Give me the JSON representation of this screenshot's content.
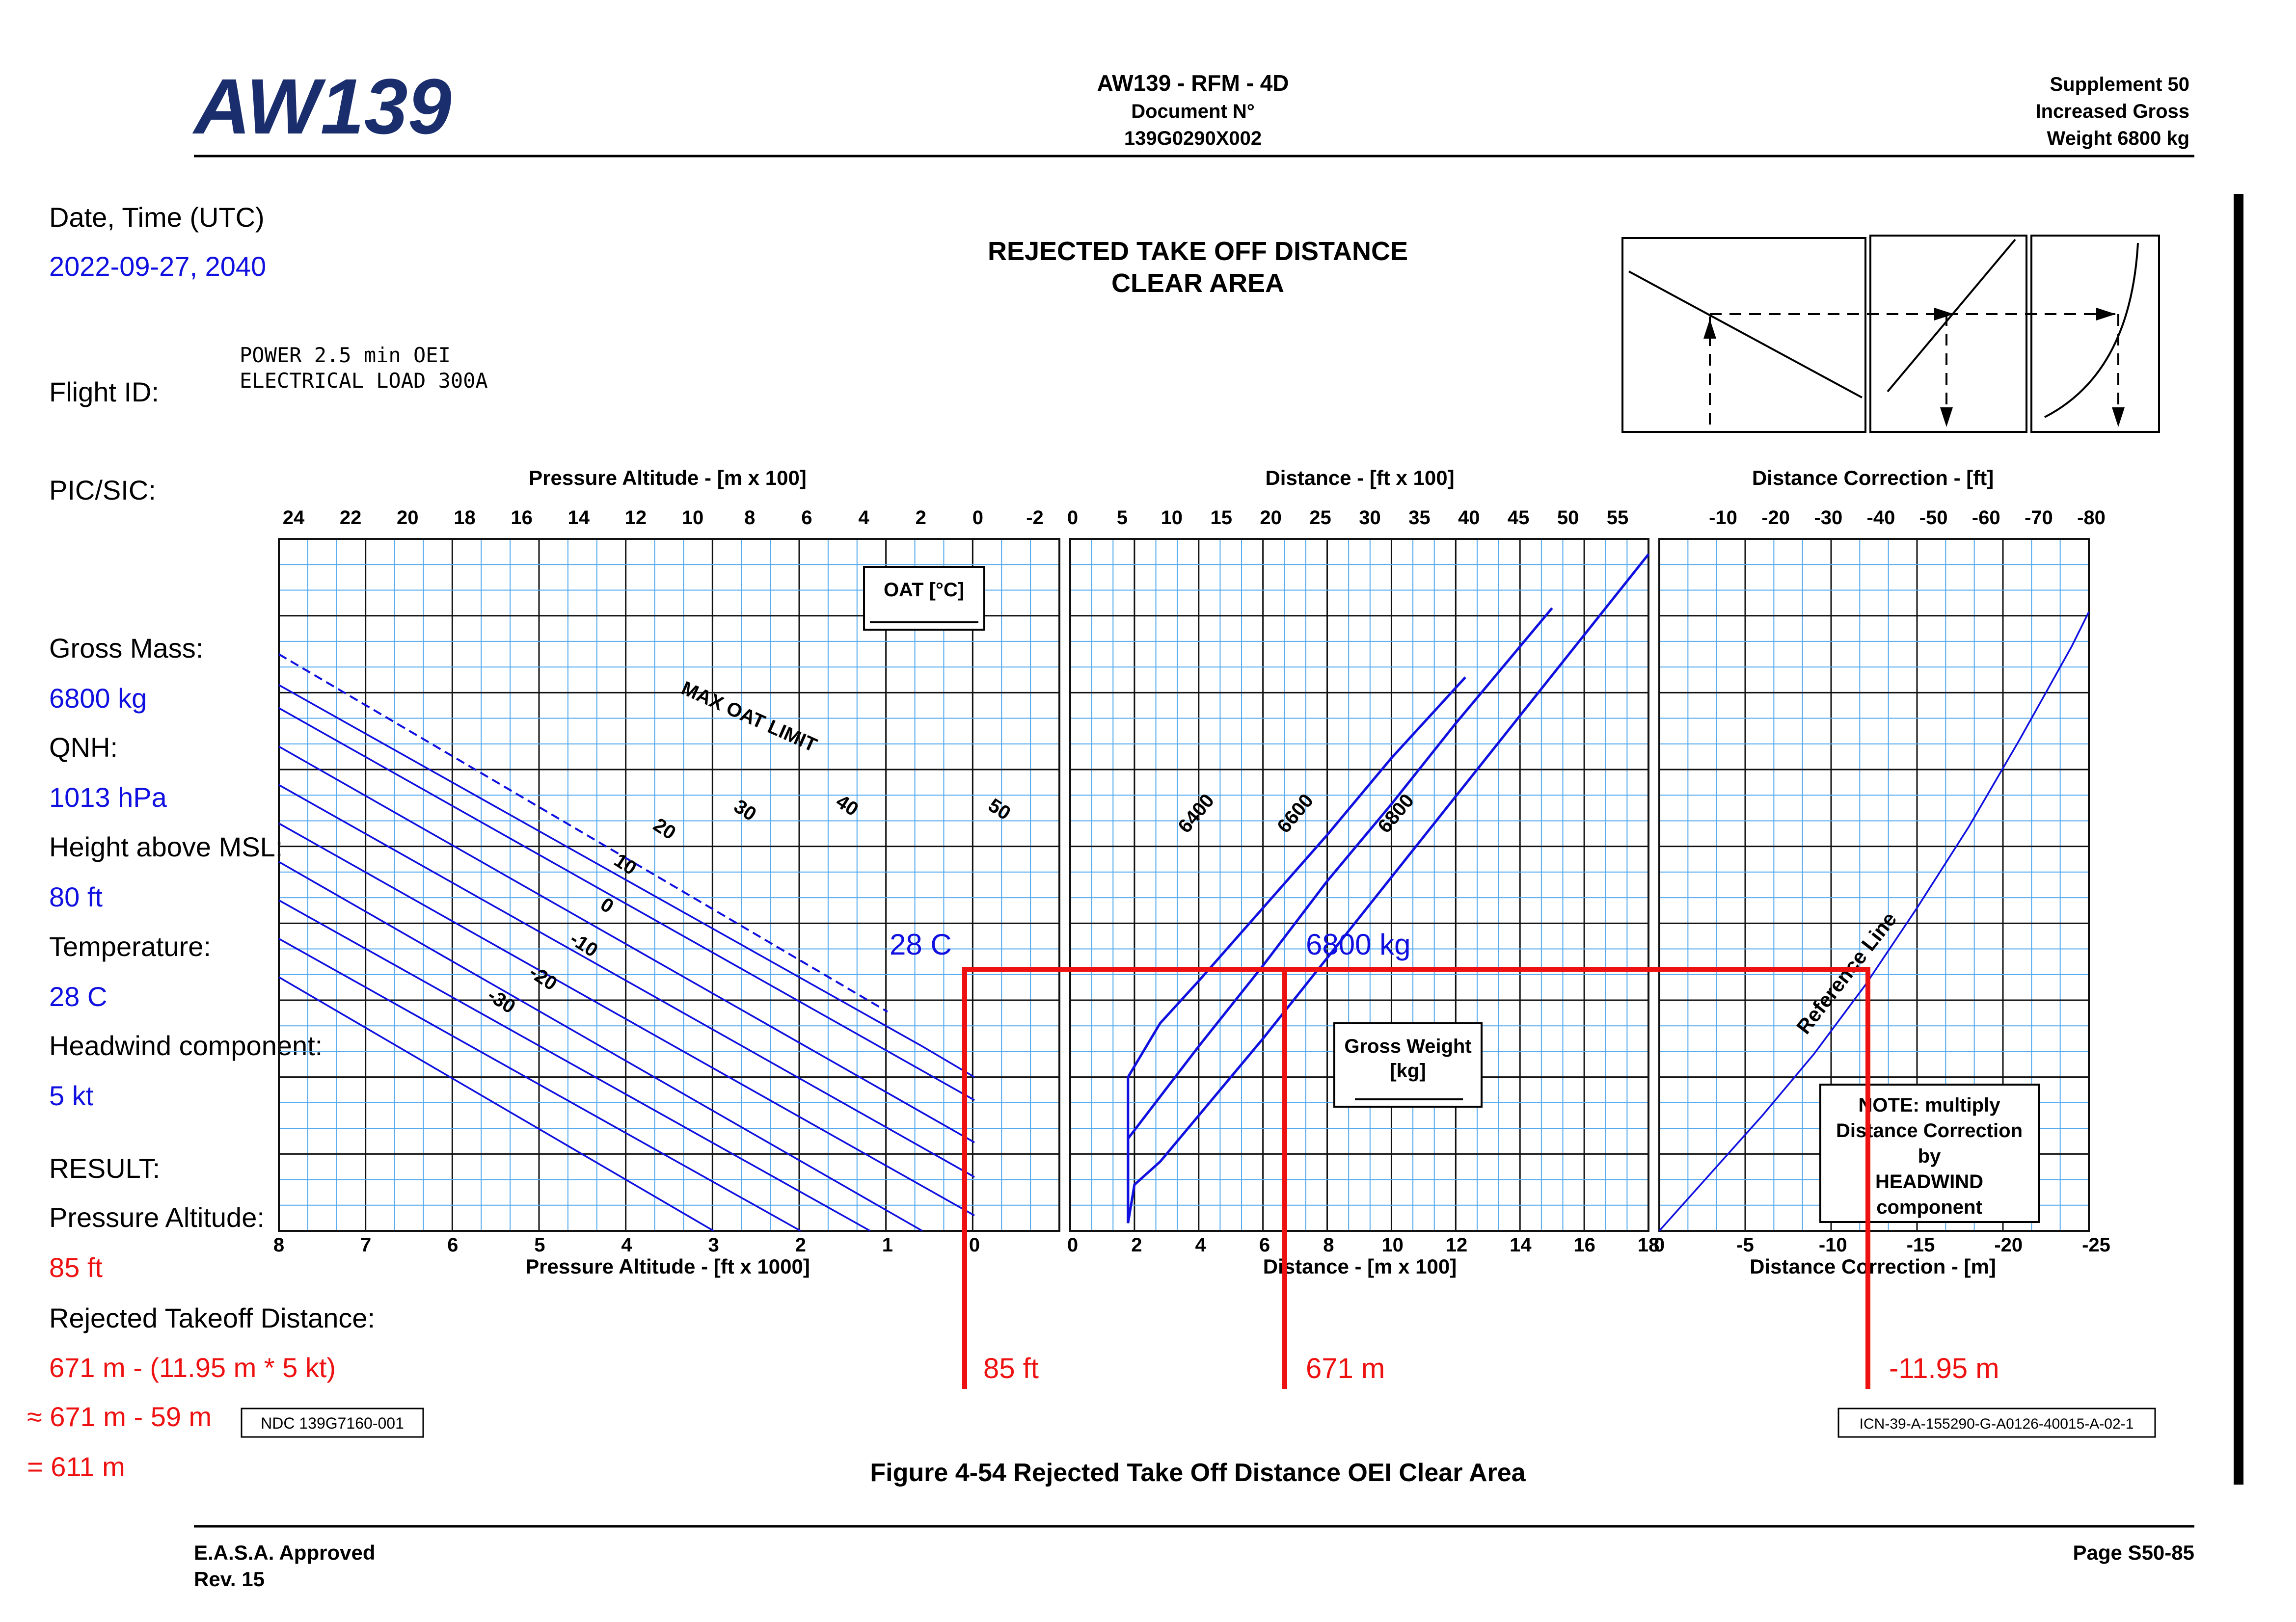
{
  "header": {
    "logo_text": "AW139",
    "center_line1": "AW139 - RFM - 4D",
    "center_line2": "Document N°",
    "center_line3": "139G0290X002",
    "right_line1": "Supplement 50",
    "right_line2": "Increased Gross",
    "right_line3": "Weight 6800 kg"
  },
  "footer": {
    "left_line1": "E.A.S.A. Approved",
    "left_line2": "Rev. 15",
    "right": "Page S50-85"
  },
  "colors": {
    "blue": "#1010e0",
    "red": "#ee1111",
    "grid_light": "#55aaee",
    "logo_red": "#c0392b",
    "logo_blue": "#1a2e6e"
  },
  "sidebar": {
    "date_label": "Date, Time (UTC)",
    "date_value": "2022-09-27, 2040",
    "flight_label": "Flight ID:",
    "pic_label": "PIC/SIC:",
    "gross_mass_label": "Gross Mass:",
    "gross_mass_value": "6800 kg",
    "qnh_label": "QNH:",
    "qnh_value": "1013 hPa",
    "height_label": "Height above MSL:",
    "height_value": "80 ft",
    "temperature_label": "Temperature:",
    "temperature_value": "28 C",
    "headwind_label": "Headwind component:",
    "headwind_value": "5 kt",
    "result_label": "RESULT:",
    "pa_label": "Pressure Altitude:",
    "pa_value": "85 ft",
    "rtod_label": "Rejected Takeoff Distance:",
    "calc_line1": "671 m - (11.95 m * 5 kt)",
    "calc_line2": "≈ 671 m - 59 m",
    "calc_line3": "= 611 m"
  },
  "chart": {
    "title_line1": "REJECTED TAKE OFF DISTANCE",
    "title_line2": "CLEAR AREA",
    "conditions_line1": "POWER 2.5 min OEI",
    "conditions_line2": "ELECTRICAL LOAD 300A",
    "oat_box_label": "OAT [°C]",
    "gw_box_line1": "Gross Weight",
    "gw_box_line2": "[kg]",
    "note_line1": "NOTE: multiply",
    "note_line2": "Distance Correction",
    "note_line3": "by",
    "note_line4": "HEADWIND",
    "note_line5": "component",
    "max_oat_label": "MAX OAT LIMIT",
    "reference_line_label": "Reference Line",
    "ndc_label": "NDC 139G7160-001",
    "icn_label": "ICN-39-A-155290-G-A0126-40015-A-02-1",
    "figure_caption": "Figure 4-54  Rejected Take Off Distance OEI Clear Area",
    "p1_top_title": "Pressure Altitude - [m x 100]",
    "p1_top_ticks": [
      "24",
      "22",
      "20",
      "18",
      "16",
      "14",
      "12",
      "10",
      "8",
      "6",
      "4",
      "2",
      "0",
      "-2"
    ],
    "p1_bottom_title": "Pressure Altitude - [ft x 1000]",
    "p1_bottom_ticks": [
      "8",
      "7",
      "6",
      "5",
      "4",
      "3",
      "2",
      "1",
      "0"
    ],
    "p2_top_title": "Distance - [ft x 100]",
    "p2_top_ticks": [
      "0",
      "5",
      "10",
      "15",
      "20",
      "25",
      "30",
      "35",
      "40",
      "45",
      "50",
      "55"
    ],
    "p2_bottom_title": "Distance - [m x 100]",
    "p2_bottom_ticks": [
      "0",
      "2",
      "4",
      "6",
      "8",
      "10",
      "12",
      "14",
      "16",
      "18"
    ],
    "p3_top_title": "Distance Correction - [ft]",
    "p3_top_ticks": [
      "-10",
      "-20",
      "-30",
      "-40",
      "-50",
      "-60",
      "-70",
      "-80"
    ],
    "p3_bottom_title": "Distance Correction - [m]",
    "p3_bottom_ticks": [
      "-5",
      "-10",
      "-15",
      "-20",
      "-25"
    ],
    "p3_bottom_zero": "0",
    "oat_curve_labels": [
      "-30",
      "-20",
      "-10",
      "0",
      "10",
      "20",
      "30",
      "40",
      "50"
    ],
    "gw_curve_labels": [
      "6400",
      "6600",
      "6800"
    ],
    "annotation_oat": "28 C",
    "annotation_gw": "6800 kg",
    "result_pa": "85 ft",
    "result_distance": "671 m",
    "result_correction": "-11.95 m"
  },
  "chart_data": [
    {
      "type": "line",
      "title": "REJECTED TAKE OFF DISTANCE CLEAR AREA",
      "xlabel": "Pressure Altitude - [ft x 1000]",
      "xlim": [
        8,
        0
      ],
      "series": [
        {
          "name": "50",
          "x": [
            8,
            0.6,
            0
          ],
          "y": [
            14.2,
            4.8,
            4.0
          ]
        },
        {
          "name": "40",
          "x": [
            8,
            0
          ],
          "y": [
            13.6,
            3.4
          ]
        },
        {
          "name": "30",
          "x": [
            8,
            0
          ],
          "y": [
            12.6,
            2.3
          ]
        },
        {
          "name": "20",
          "x": [
            8,
            0
          ],
          "y": [
            11.6,
            1.4
          ]
        },
        {
          "name": "10",
          "x": [
            8,
            0
          ],
          "y": [
            10.6,
            0.4
          ]
        },
        {
          "name": "0",
          "x": [
            8,
            0.6
          ],
          "y": [
            9.6,
            0.0
          ]
        },
        {
          "name": "-10",
          "x": [
            8,
            1.2
          ],
          "y": [
            8.6,
            0.0
          ]
        },
        {
          "name": "-20",
          "x": [
            8,
            2.0
          ],
          "y": [
            7.6,
            0.0
          ]
        },
        {
          "name": "-30",
          "x": [
            8,
            3.0
          ],
          "y": [
            6.6,
            0.0
          ]
        },
        {
          "name": "MAX OAT LIMIT",
          "x": [
            8,
            1.0
          ],
          "y": [
            15.0,
            5.7
          ]
        }
      ]
    },
    {
      "type": "line",
      "xlabel": "Distance - [m x 100]",
      "xlim": [
        0,
        18
      ],
      "series": [
        {
          "name": "6400",
          "x": [
            1.8,
            1.8,
            2.3,
            2.8,
            4.0,
            6.0,
            8.0,
            10.0,
            12.3
          ],
          "y": [
            0.2,
            4.0,
            4.7,
            5.4,
            6.5,
            8.4,
            10.3,
            12.3,
            14.4
          ]
        },
        {
          "name": "6600",
          "x": [
            1.8,
            1.8,
            4.0,
            6.0,
            8.0,
            10.0,
            12.0,
            15.0
          ],
          "y": [
            0.2,
            2.4,
            4.8,
            6.9,
            9.1,
            11.1,
            13.2,
            16.2
          ]
        },
        {
          "name": "6800",
          "x": [
            1.8,
            2.0,
            2.8,
            4.0,
            6.0,
            8.0,
            10.0,
            12.0,
            14.0,
            18.0
          ],
          "y": [
            0.2,
            1.2,
            1.8,
            3.0,
            5.0,
            7.1,
            9.2,
            11.3,
            13.4,
            17.6
          ]
        }
      ]
    },
    {
      "type": "line",
      "xlabel": "Distance Correction - [m]",
      "xlim": [
        0,
        -25
      ],
      "series": [
        {
          "name": "Reference Line",
          "x": [
            0,
            -3,
            -6,
            -9,
            -12,
            -15,
            -18,
            -21,
            -24,
            -25
          ],
          "y": [
            0.0,
            1.5,
            3.0,
            4.6,
            6.4,
            8.4,
            10.5,
            12.8,
            15.2,
            16.1
          ]
        }
      ]
    }
  ]
}
